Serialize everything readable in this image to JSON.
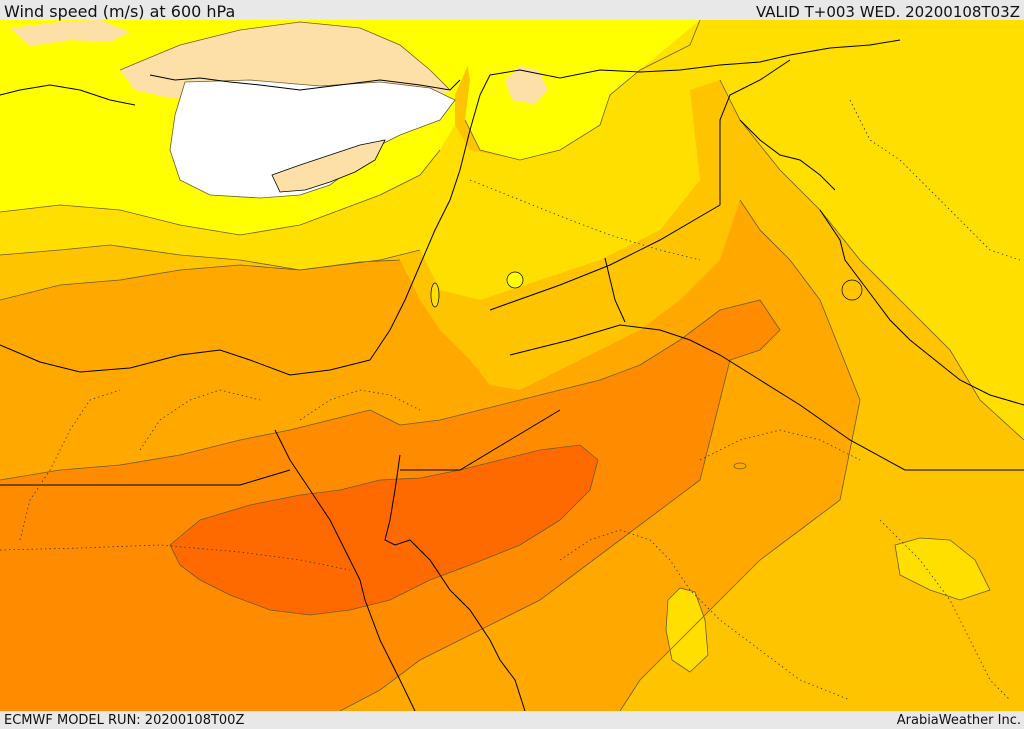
{
  "header": {
    "title": "Wind speed (m/s) at 600 hPa",
    "valid": "VALID T+003 WED. 20200108T03Z"
  },
  "footer": {
    "model_run": "ECMWF MODEL RUN: 20200108T00Z",
    "credit": "ArabiaWeather Inc."
  },
  "palette": {
    "calm": "#ffffff",
    "level_1": "#fde0a8",
    "level_2": "#ffff00",
    "level_3": "#ffdf00",
    "level_4": "#ffc400",
    "level_5": "#ffa800",
    "level_6": "#ff8c00",
    "level_7": "#ff6a00",
    "land_sea_lines": "#000000",
    "contour_lines": "#6b5a30"
  }
}
